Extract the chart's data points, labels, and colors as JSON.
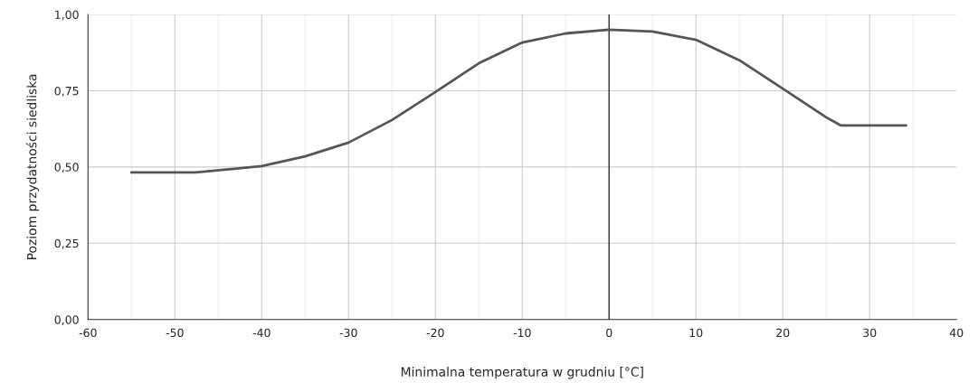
{
  "chart_data": {
    "type": "line",
    "xlabel": "Minimalna temperatura w grudniu [°C]",
    "ylabel": "Poziom przydatności siedliska",
    "series": [
      {
        "color": "#555555",
        "x": [
          -55,
          -47.6,
          -40,
          -35,
          -30,
          -25,
          -20,
          -15,
          -10,
          -5,
          0,
          5,
          10,
          15,
          20,
          25,
          26.7,
          34.2
        ],
        "values": [
          0.482,
          0.482,
          0.503,
          0.535,
          0.58,
          0.654,
          0.746,
          0.84,
          0.908,
          0.938,
          0.95,
          0.944,
          0.917,
          0.85,
          0.757,
          0.663,
          0.636,
          0.636
        ]
      }
    ],
    "xlim": [
      -60,
      40
    ],
    "xticks": [
      -60,
      -50,
      -40,
      -30,
      -20,
      -10,
      0,
      10,
      20,
      30,
      40
    ],
    "ylim": [
      0,
      1
    ],
    "yticks": [
      {
        "value": 0,
        "label": "0,00"
      },
      {
        "value": 0.25,
        "label": "0,25"
      },
      {
        "value": 0.5,
        "label": "0,50"
      },
      {
        "value": 0.75,
        "label": "0,75"
      },
      {
        "value": 1,
        "label": "1,00"
      }
    ],
    "ref_lines": [
      {
        "axis": "x",
        "value": 0,
        "color": "#333333"
      }
    ],
    "grid": true,
    "marker": "none",
    "line_style": "solid"
  }
}
